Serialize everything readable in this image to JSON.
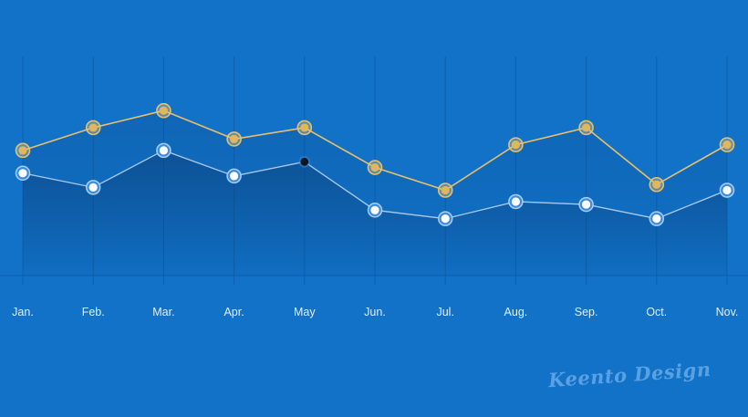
{
  "chart_data": {
    "type": "line",
    "categories": [
      "Jan.",
      "Feb.",
      "Mar.",
      "Apr.",
      "May",
      "Jun.",
      "Jul.",
      "Aug.",
      "Sep.",
      "Oct.",
      "Nov."
    ],
    "series": [
      {
        "values": [
          84,
          92,
          98,
          88,
          92,
          78,
          70,
          86,
          92,
          72,
          86
        ],
        "color": "#e9c06a"
      },
      {
        "values": [
          76,
          71,
          84,
          75,
          80,
          63,
          60,
          66,
          65,
          60,
          70
        ],
        "color": "#cfe3ff",
        "highlight_index": 4
      }
    ],
    "ylim": [
      40,
      117
    ],
    "grid": true,
    "legend": "none",
    "title": "",
    "xlabel": "",
    "ylabel": ""
  },
  "watermark": "Keento Design"
}
